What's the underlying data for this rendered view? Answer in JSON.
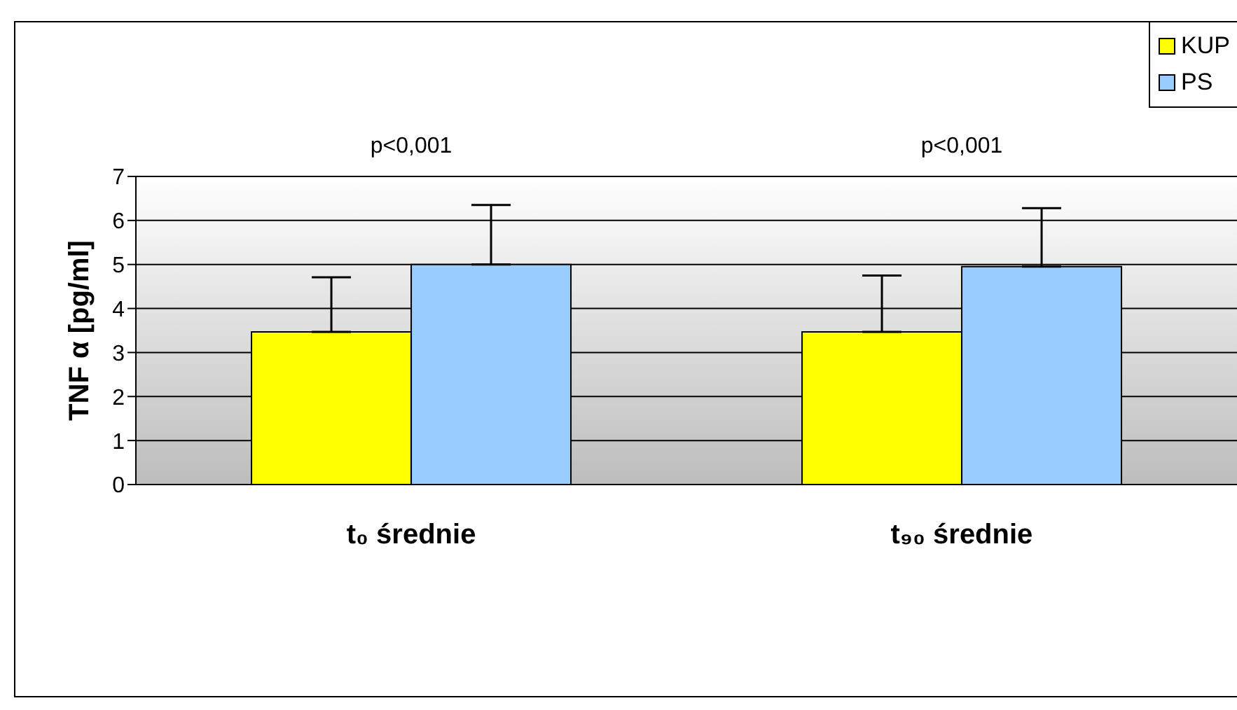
{
  "chart_data": {
    "type": "bar",
    "categories": [
      "t₀ średnie",
      "t₉₀ średnie"
    ],
    "ylabel": "TNF α [pg/ml]",
    "series": [
      {
        "name": "KUP",
        "color": "#ffff00",
        "values": [
          3.47,
          3.47
        ],
        "errors": [
          [
            3.47,
            4.71
          ],
          [
            3.47,
            4.75
          ]
        ]
      },
      {
        "name": "PS",
        "color": "#99ccff",
        "values": [
          5.0,
          4.95
        ],
        "errors": [
          [
            5.0,
            6.35
          ],
          [
            4.95,
            6.28
          ]
        ]
      }
    ],
    "annotations": [
      "p<0,001",
      "p<0,001"
    ],
    "ylim": [
      0,
      7
    ],
    "yticks": [
      0,
      1,
      2,
      3,
      4,
      5,
      6,
      7
    ],
    "grid": "y",
    "legend": "top right"
  }
}
